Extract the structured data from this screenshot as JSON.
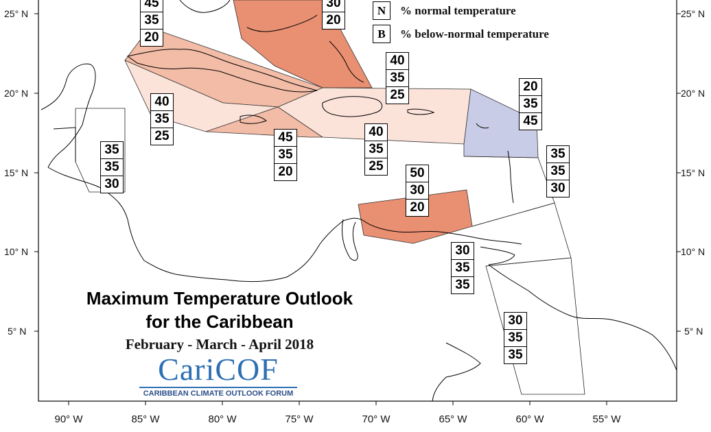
{
  "title_line1": "Maximum Temperature Outlook",
  "title_line2": "for the Caribbean",
  "period": "February - March - April 2018",
  "logo": {
    "name": "CariCOF",
    "tagline": "CARIBBEAN CLIMATE OUTLOOK FORUM"
  },
  "legend": [
    {
      "key": "N",
      "text": "% normal temperature"
    },
    {
      "key": "B",
      "text": "% below-normal temperature"
    }
  ],
  "lat_labels": [
    "25° N",
    "20° N",
    "15° N",
    "10° N",
    "5° N"
  ],
  "lon_labels": [
    "90° W",
    "85° W",
    "80° W",
    "75° W",
    "70° W",
    "65° W",
    "60° W",
    "55° W"
  ],
  "colors": {
    "above_light": "#fbe3da",
    "above_medium": "#f3bca6",
    "above_strong": "#e98f72",
    "below_light": "#c9cce6",
    "normal": "#ffffff"
  },
  "regions": [
    {
      "id": "bahamas-north",
      "above": 30,
      "normal": 20,
      "below": null
    },
    {
      "id": "western-cuba",
      "above": 45,
      "normal": 35,
      "below": 20
    },
    {
      "id": "turks-caicos",
      "above": 40,
      "normal": 35,
      "below": 25
    },
    {
      "id": "central-cuba-south",
      "above": 40,
      "normal": 35,
      "below": 25
    },
    {
      "id": "jamaica",
      "above": 45,
      "normal": 35,
      "below": 20
    },
    {
      "id": "hispaniola-puerto-rico",
      "above": 40,
      "normal": 35,
      "below": 25
    },
    {
      "id": "leeward-islands",
      "above": 20,
      "normal": 35,
      "below": 45
    },
    {
      "id": "belize",
      "above": 35,
      "normal": 35,
      "below": 30
    },
    {
      "id": "windward-islands",
      "above": 35,
      "normal": 35,
      "below": 30
    },
    {
      "id": "abc-islands",
      "above": 50,
      "normal": 30,
      "below": 20
    },
    {
      "id": "trinidad-tobago",
      "above": 30,
      "normal": 35,
      "below": 35
    },
    {
      "id": "guianas",
      "above": 30,
      "normal": 35,
      "below": 35
    }
  ]
}
